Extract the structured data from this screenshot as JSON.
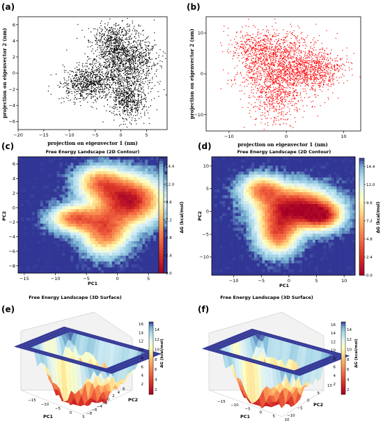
{
  "panels": {
    "a": {
      "label": "(a)",
      "chart_data": {
        "type": "scatter",
        "title": "",
        "xlabel": "projection on eigenvector 1 (nm)",
        "ylabel": "projection on eigenvector 2 (nm)",
        "xlim": [
          -20,
          9
        ],
        "ylim": [
          -7,
          7
        ],
        "xticks": [
          -20,
          -15,
          -10,
          -5,
          0,
          5
        ],
        "yticks": [
          -6,
          -4,
          -2,
          0,
          2,
          4,
          6
        ],
        "color": "#000000",
        "clusters": [
          {
            "cx": 0.5,
            "cy": 1.5,
            "sx": 3.2,
            "sy": 2.0,
            "n": 1400
          },
          {
            "cx": -6.5,
            "cy": -1.2,
            "sx": 2.6,
            "sy": 1.0,
            "n": 700
          },
          {
            "cx": 1.5,
            "cy": -3.3,
            "sx": 1.8,
            "sy": 1.2,
            "n": 500
          },
          {
            "cx": -1.5,
            "cy": 4.2,
            "sx": 2.0,
            "sy": 1.0,
            "n": 300
          }
        ]
      }
    },
    "b": {
      "label": "(b)",
      "chart_data": {
        "type": "scatter",
        "title": "",
        "xlabel": "projection on eigenvector 1 (nm)",
        "ylabel": "projection on eigenvector 2 (nm)",
        "xlim": [
          -14,
          13
        ],
        "ylim": [
          -14,
          14
        ],
        "xticks": [
          -10,
          0,
          10
        ],
        "yticks": [
          -10,
          0,
          10
        ],
        "color": "#ff0000",
        "clusters": [
          {
            "cx": -1,
            "cy": 2,
            "sx": 4.0,
            "sy": 4.0,
            "n": 1400
          },
          {
            "cx": 5,
            "cy": 1,
            "sx": 2.8,
            "sy": 2.2,
            "n": 500
          },
          {
            "cx": -2,
            "cy": -6,
            "sx": 2.2,
            "sy": 3.0,
            "n": 400
          },
          {
            "cx": -5,
            "cy": 7,
            "sx": 2.5,
            "sy": 2.0,
            "n": 300
          }
        ]
      }
    },
    "c": {
      "label": "(c)",
      "chart_data": {
        "type": "heatmap",
        "title": "Free Energy Landscape (2D Contour)",
        "xlabel": "PC1",
        "ylabel": "PC2",
        "xlim": [
          -16,
          8
        ],
        "ylim": [
          -9,
          7
        ],
        "xticks": [
          -15,
          -10,
          -5,
          0,
          5
        ],
        "yticks": [
          -8,
          -6,
          -4,
          -2,
          0,
          2,
          4,
          6
        ],
        "colorbar_label": "ΔG (kcal/mol)",
        "colorbar_ticks": [
          "0.0",
          "2.4",
          "4.8",
          "7.2",
          "9.6",
          "12.0",
          "14.4"
        ],
        "zmax": 16,
        "wells": [
          {
            "x": 2,
            "y": 1,
            "sx": 3.5,
            "sy": 2.2,
            "depth": 15
          },
          {
            "x": -7,
            "y": -1.5,
            "sx": 2.5,
            "sy": 1.2,
            "depth": 11
          },
          {
            "x": -2,
            "y": -3.5,
            "sx": 2.5,
            "sy": 2.0,
            "depth": 11
          },
          {
            "x": -3,
            "y": 3.5,
            "sx": 2.5,
            "sy": 1.5,
            "depth": 9
          }
        ]
      }
    },
    "d": {
      "label": "(d)",
      "chart_data": {
        "type": "heatmap",
        "title": "Free Energy Landscape (2D Contour)",
        "xlabel": "PC1",
        "ylabel": "PC2",
        "xlim": [
          -14,
          12
        ],
        "ylim": [
          -14,
          12
        ],
        "xticks": [
          -10,
          -5,
          0,
          5,
          10
        ],
        "yticks": [
          -10,
          -5,
          0,
          5,
          10
        ],
        "colorbar_label": "ΔG (kcal/mol)",
        "colorbar_ticks": [
          "0.0",
          "2.4",
          "4.8",
          "7.2",
          "9.6",
          "12.0",
          "14.4"
        ],
        "zmax": 16,
        "wells": [
          {
            "x": 1,
            "y": 1,
            "sx": 4.5,
            "sy": 3.0,
            "depth": 15
          },
          {
            "x": -2,
            "y": -5,
            "sx": 2.5,
            "sy": 3.0,
            "depth": 11
          },
          {
            "x": 6,
            "y": -1,
            "sx": 2.5,
            "sy": 2.0,
            "depth": 11
          },
          {
            "x": -5,
            "y": 5,
            "sx": 2.5,
            "sy": 2.0,
            "depth": 9
          }
        ]
      }
    },
    "e": {
      "label": "(e)",
      "chart_data": {
        "type": "surface",
        "title": "Free Energy Landscape (3D Surface)",
        "xlabel": "PC1",
        "ylabel": "PC2",
        "zlabel": "ΔG (kcal/mol)",
        "xticks": [
          "-15",
          "-10",
          "-5",
          "0",
          "5"
        ],
        "yticks": [
          "-8",
          "-6",
          "-4",
          "-2",
          "0",
          "2",
          "4",
          "6"
        ],
        "zticks": [
          "2",
          "4",
          "6",
          "8",
          "10",
          "12",
          "14",
          "16"
        ],
        "colorbar_ticks": [
          "2",
          "4",
          "6",
          "8",
          "10",
          "12",
          "14"
        ]
      }
    },
    "f": {
      "label": "(f)",
      "chart_data": {
        "type": "surface",
        "title": "Free Energy Landscape (3D Surface)",
        "xlabel": "PC1",
        "ylabel": "PC2",
        "zlabel": "ΔG (kcal/mol)",
        "xticks": [
          "-15",
          "-10",
          "-5",
          "0",
          "5",
          "10"
        ],
        "yticks": [
          "-10",
          "-5",
          "0",
          "5",
          "10"
        ],
        "zticks": [
          "2",
          "4",
          "6",
          "8",
          "10",
          "12",
          "14",
          "16"
        ],
        "colorbar_ticks": [
          "2",
          "4",
          "6",
          "8",
          "10",
          "12",
          "14"
        ]
      }
    }
  }
}
